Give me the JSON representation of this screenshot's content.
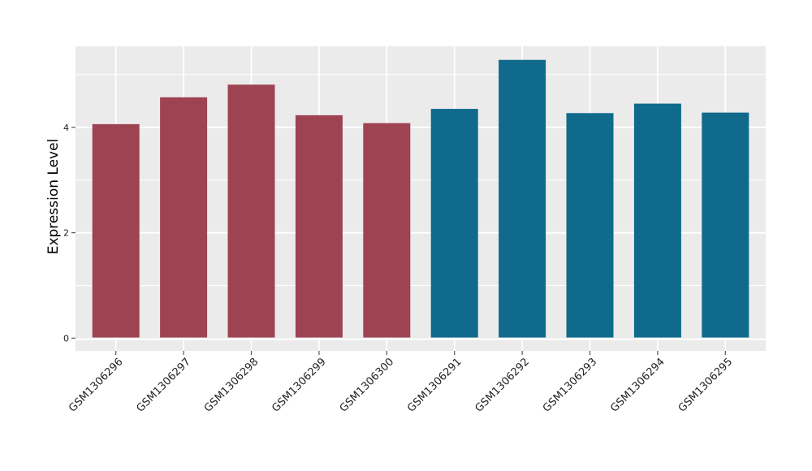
{
  "chart_data": {
    "type": "bar",
    "title": "",
    "xlabel": "",
    "ylabel": "Expression Level",
    "categories": [
      "GSM1306296",
      "GSM1306297",
      "GSM1306298",
      "GSM1306299",
      "GSM1306300",
      "GSM1306291",
      "GSM1306292",
      "GSM1306293",
      "GSM1306294",
      "GSM1306295"
    ],
    "values": [
      4.06,
      4.57,
      4.81,
      4.23,
      4.08,
      4.35,
      5.28,
      4.27,
      4.45,
      4.28
    ],
    "bar_colors": [
      "#9E4352",
      "#9E4352",
      "#9E4352",
      "#9E4352",
      "#9E4352",
      "#0F6A8C",
      "#0F6A8C",
      "#0F6A8C",
      "#0F6A8C",
      "#0F6A8C"
    ],
    "yticks": [
      0,
      2,
      4
    ],
    "ytick_labels": [
      "0",
      "2",
      "4"
    ],
    "yticks_minor": [
      1,
      3,
      5
    ],
    "ylim": [
      -0.24,
      5.54
    ],
    "grid": "on",
    "legend": "none",
    "colors": {
      "figure_bg": "#FFFFFF",
      "panel_bg": "#EBEBEB",
      "grid_major": "#FFFFFF",
      "grid_minor": "#FFFFFF",
      "tick_mark": "#555555",
      "tick_label": "#222222",
      "axis_title": "#000000",
      "bar_group_left": "#9E4352",
      "bar_group_right": "#0F6A8C"
    }
  }
}
